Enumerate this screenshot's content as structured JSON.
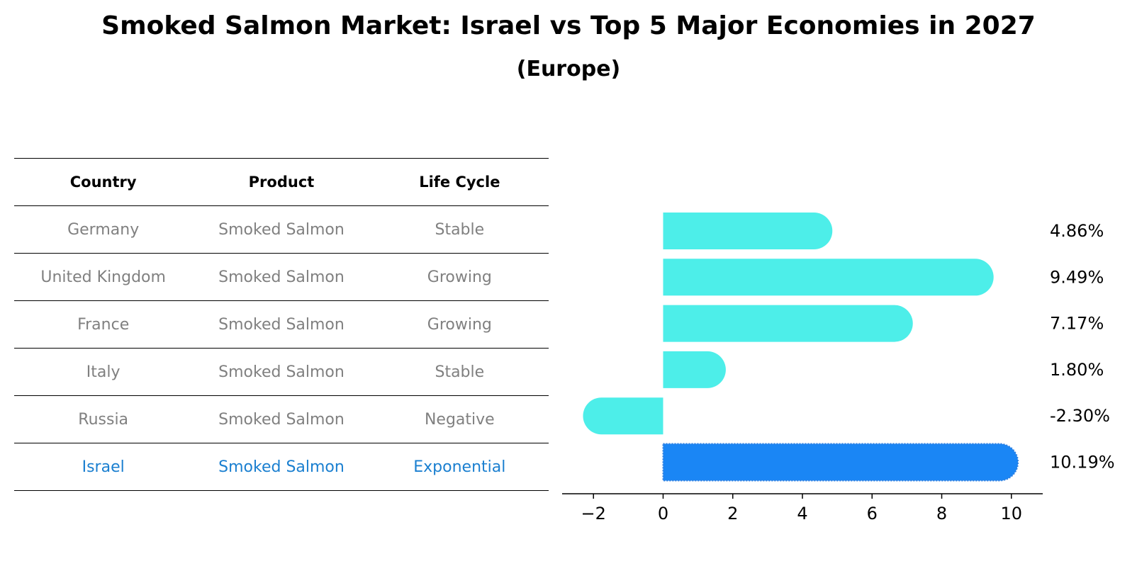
{
  "title": "Smoked Salmon Market: Israel vs Top 5 Major Economies in 2027",
  "subtitle": "(Europe)",
  "table": {
    "headers": [
      "Country",
      "Product",
      "Life Cycle"
    ],
    "rows": [
      {
        "country": "Germany",
        "product": "Smoked Salmon",
        "life_cycle": "Stable",
        "highlight": false
      },
      {
        "country": "United Kingdom",
        "product": "Smoked Salmon",
        "life_cycle": "Growing",
        "highlight": false
      },
      {
        "country": "France",
        "product": "Smoked Salmon",
        "life_cycle": "Growing",
        "highlight": false
      },
      {
        "country": "Italy",
        "product": "Smoked Salmon",
        "life_cycle": "Stable",
        "highlight": false
      },
      {
        "country": "Russia",
        "product": "Smoked Salmon",
        "life_cycle": "Negative",
        "highlight": false
      },
      {
        "country": "Israel",
        "product": "Smoked Salmon",
        "life_cycle": "Exponential",
        "highlight": true
      }
    ]
  },
  "colors": {
    "bar": "#4deee9",
    "highlight_bar": "#1a86f5",
    "muted_text": "#808080",
    "highlight_text": "#1a7fd0"
  },
  "chart_data": {
    "type": "bar",
    "orientation": "horizontal",
    "categories": [
      "Germany",
      "United Kingdom",
      "France",
      "Italy",
      "Russia",
      "Israel"
    ],
    "values": [
      4.86,
      9.49,
      7.17,
      1.8,
      -2.3,
      10.19
    ],
    "data_labels": [
      "4.86%",
      "9.49%",
      "7.17%",
      "1.80%",
      "-2.30%",
      "10.19%"
    ],
    "highlight_index": 5,
    "xlim": [
      -2.9,
      10.9
    ],
    "xticks": [
      -2,
      0,
      2,
      4,
      6,
      8,
      10
    ],
    "xtick_labels": [
      "−2",
      "0",
      "2",
      "4",
      "6",
      "8",
      "10"
    ],
    "title": "",
    "xlabel": "",
    "ylabel": "",
    "grid": false,
    "legend": false
  }
}
